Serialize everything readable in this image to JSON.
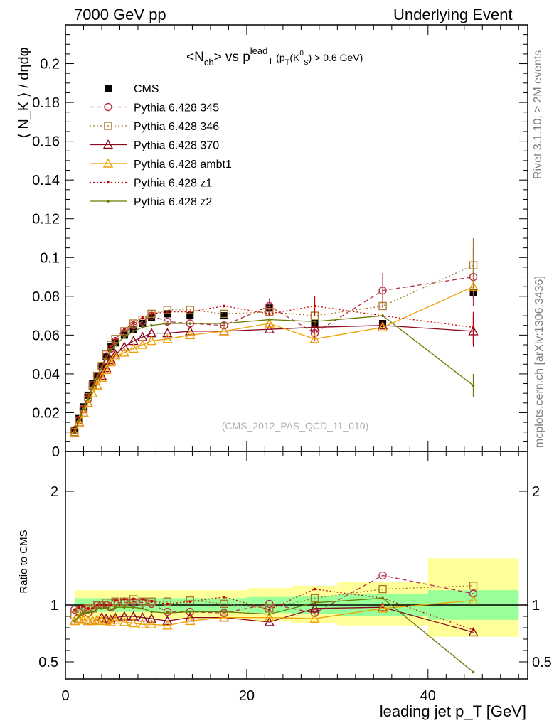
{
  "header": {
    "left": "7000 GeV pp",
    "right": "Underlying Event"
  },
  "side": {
    "rivet": "Rivet 3.1.10, ≥ 2M events",
    "mcplots": "mcplots.cern.ch [arXiv:1306.3436]"
  },
  "chart_data": [
    {
      "type": "scatter",
      "panel": "main",
      "title_parts": {
        "pre": "<N",
        "sub1": "ch",
        "mid": "> vs p",
        "sup2": "lead",
        "sub2": "T",
        "tail": "(p",
        "tail_sub": "T",
        "tail2": "(K",
        "tail_sup3": "0",
        "tail_sub3": "S",
        "tail3": ") > 0.6 GeV)"
      },
      "watermark": "(CMS_2012_PAS_QCD_11_010)",
      "ylabel": "⟨ N_K ⟩ / dηdφ",
      "xlim": [
        0,
        51
      ],
      "ylim": [
        0,
        0.22
      ],
      "yticks": [
        0,
        0.02,
        0.04,
        0.06,
        0.08,
        0.1,
        0.12,
        0.14,
        0.16,
        0.18,
        0.2
      ],
      "x": [
        1.0,
        1.5,
        2.0,
        2.5,
        3.0,
        3.5,
        4.0,
        4.5,
        5.0,
        5.5,
        6.5,
        7.5,
        8.5,
        9.5,
        11.25,
        13.75,
        17.5,
        22.5,
        27.5,
        35.0,
        45.0
      ],
      "series": [
        {
          "name": "CMS",
          "color": "#000000",
          "marker": "square-filled",
          "dash": "none",
          "values": [
            0.011,
            0.017,
            0.023,
            0.029,
            0.035,
            0.039,
            0.044,
            0.049,
            0.054,
            0.056,
            0.06,
            0.063,
            0.066,
            0.069,
            0.071,
            0.07,
            0.07,
            0.074,
            0.066,
            0.066,
            0.082
          ]
        },
        {
          "name": "Pythia 6.428 345",
          "color": "#b5304a",
          "marker": "circle-open",
          "dash": "6,4",
          "values": [
            0.011,
            0.016,
            0.022,
            0.027,
            0.034,
            0.039,
            0.044,
            0.049,
            0.053,
            0.057,
            0.061,
            0.065,
            0.067,
            0.07,
            0.067,
            0.066,
            0.065,
            0.075,
            0.061,
            0.083,
            0.09
          ]
        },
        {
          "name": "Pythia 6.428 346",
          "color": "#a57a2c",
          "marker": "square-open",
          "dash": "2,3",
          "values": [
            0.01,
            0.016,
            0.022,
            0.028,
            0.034,
            0.039,
            0.044,
            0.05,
            0.055,
            0.058,
            0.062,
            0.066,
            0.068,
            0.071,
            0.073,
            0.073,
            0.071,
            0.072,
            0.07,
            0.075,
            0.096
          ]
        },
        {
          "name": "Pythia 6.428 370",
          "color": "#8b0a1e",
          "marker": "triangle-open",
          "dash": "none",
          "values": [
            0.0095,
            0.015,
            0.02,
            0.025,
            0.03,
            0.034,
            0.039,
            0.043,
            0.047,
            0.05,
            0.054,
            0.057,
            0.059,
            0.061,
            0.061,
            0.062,
            0.062,
            0.063,
            0.064,
            0.065,
            0.062
          ]
        },
        {
          "name": "Pythia 6.428 ambt1",
          "color": "#f0a000",
          "marker": "triangle-open",
          "dash": "none",
          "values": [
            0.0095,
            0.015,
            0.02,
            0.025,
            0.03,
            0.034,
            0.038,
            0.042,
            0.046,
            0.049,
            0.051,
            0.053,
            0.055,
            0.057,
            0.058,
            0.06,
            0.062,
            0.066,
            0.058,
            0.064,
            0.085
          ]
        },
        {
          "name": "Pythia 6.428 z1",
          "color": "#cc0000",
          "marker": "dot",
          "dash": "2,3",
          "values": [
            0.011,
            0.017,
            0.023,
            0.028,
            0.034,
            0.039,
            0.044,
            0.049,
            0.054,
            0.058,
            0.063,
            0.066,
            0.069,
            0.071,
            0.072,
            0.072,
            0.075,
            0.071,
            0.075,
            0.07,
            0.064
          ]
        },
        {
          "name": "Pythia 6.428 z2",
          "color": "#6b7a00",
          "marker": "dot",
          "dash": "none",
          "values": [
            0.01,
            0.016,
            0.022,
            0.027,
            0.033,
            0.038,
            0.043,
            0.048,
            0.052,
            0.055,
            0.059,
            0.062,
            0.064,
            0.065,
            0.066,
            0.066,
            0.066,
            0.068,
            0.067,
            0.07,
            0.034
          ]
        }
      ],
      "errors": {
        "Pythia 6.428 345": {
          "22.5": 0.004,
          "27.5": 0.004,
          "35.0": 0.009,
          "45.0": 0.015
        },
        "Pythia 6.428 346": {
          "45.0": 0.014
        },
        "Pythia 6.428 370": {
          "45.0": 0.008
        },
        "Pythia 6.428 z1": {
          "27.5": 0.005,
          "45.0": 0.008
        },
        "Pythia 6.428 z2": {
          "45.0": 0.006
        },
        "CMS": {
          "45.0": 0.003
        }
      }
    },
    {
      "type": "scatter",
      "panel": "ratio",
      "ylabel": "Ratio to CMS",
      "xlabel": "leading jet p_T [GeV]",
      "xlim": [
        0,
        51
      ],
      "ylim": [
        0.35,
        2.35
      ],
      "yticks": [
        0.5,
        1,
        2
      ],
      "xticks": [
        0,
        20,
        40
      ],
      "band_edges": [
        1.0,
        10.0,
        20.0,
        25.0,
        30.0,
        40.0,
        50.0
      ],
      "band_inner": [
        [
          0.94,
          1.06
        ],
        [
          0.94,
          1.06
        ],
        [
          0.93,
          1.07
        ],
        [
          0.92,
          1.08
        ],
        [
          0.9,
          1.1
        ],
        [
          0.87,
          1.13
        ]
      ],
      "band_outer": [
        [
          0.88,
          1.13
        ],
        [
          0.88,
          1.13
        ],
        [
          0.86,
          1.15
        ],
        [
          0.84,
          1.17
        ],
        [
          0.82,
          1.2
        ],
        [
          0.72,
          1.41
        ]
      ],
      "x": [
        1.0,
        1.5,
        2.0,
        2.5,
        3.0,
        3.5,
        4.0,
        4.5,
        5.0,
        5.5,
        6.5,
        7.5,
        8.5,
        9.5,
        11.25,
        13.75,
        17.5,
        22.5,
        27.5,
        35.0,
        45.0
      ],
      "series": [
        {
          "name": "Pythia 6.428 345",
          "values": [
            0.96,
            0.94,
            0.95,
            0.93,
            0.97,
            1.0,
            1.0,
            1.0,
            0.98,
            1.02,
            1.02,
            1.03,
            1.02,
            1.01,
            0.94,
            0.94,
            0.93,
            1.01,
            0.93,
            1.26,
            1.1
          ]
        },
        {
          "name": "Pythia 6.428 346",
          "values": [
            0.91,
            0.94,
            0.96,
            0.97,
            0.97,
            1.0,
            1.0,
            1.02,
            1.02,
            1.03,
            1.03,
            1.05,
            1.03,
            1.03,
            1.03,
            1.04,
            1.01,
            0.97,
            1.06,
            1.14,
            1.17
          ]
        },
        {
          "name": "Pythia 6.428 370",
          "values": [
            0.86,
            0.88,
            0.87,
            0.86,
            0.86,
            0.87,
            0.89,
            0.88,
            0.87,
            0.89,
            0.9,
            0.9,
            0.89,
            0.88,
            0.86,
            0.89,
            0.89,
            0.85,
            0.97,
            0.98,
            0.76
          ]
        },
        {
          "name": "Pythia 6.428 ambt1",
          "values": [
            0.86,
            0.88,
            0.87,
            0.86,
            0.86,
            0.87,
            0.86,
            0.86,
            0.85,
            0.87,
            0.85,
            0.84,
            0.83,
            0.83,
            0.82,
            0.86,
            0.89,
            0.89,
            0.88,
            0.97,
            1.04
          ]
        },
        {
          "name": "Pythia 6.428 z1",
          "values": [
            0.96,
            0.98,
            0.99,
            0.97,
            0.97,
            1.0,
            1.0,
            1.0,
            1.0,
            1.04,
            1.05,
            1.05,
            1.05,
            1.03,
            1.01,
            1.03,
            1.07,
            0.96,
            1.14,
            1.06,
            0.78
          ]
        },
        {
          "name": "Pythia 6.428 z2",
          "values": [
            0.86,
            0.9,
            0.93,
            0.93,
            0.94,
            0.97,
            0.97,
            0.98,
            0.96,
            0.98,
            0.98,
            0.98,
            0.97,
            0.94,
            0.93,
            0.94,
            0.94,
            0.92,
            1.02,
            1.06,
            0.41
          ]
        }
      ]
    }
  ]
}
